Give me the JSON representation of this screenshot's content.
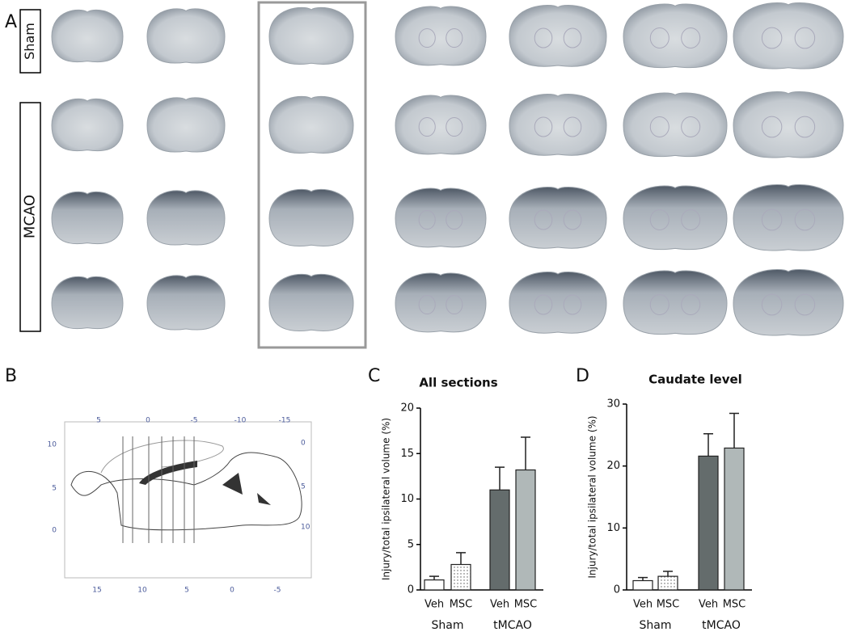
{
  "panels": {
    "A": {
      "label": "A",
      "rows": [
        "Sham",
        "MCAO"
      ]
    },
    "B": {
      "label": "B",
      "top_ticks": [
        "5",
        "0",
        "-5",
        "-10",
        "-15"
      ],
      "right_ticks": [
        "0",
        "5",
        "10"
      ],
      "left_ticks": [
        "10",
        "5",
        "0"
      ],
      "bottom_ticks": [
        "15",
        "10",
        "5",
        "0",
        "-5"
      ]
    },
    "C": {
      "label": "C"
    },
    "D": {
      "label": "D"
    }
  },
  "chart_data": [
    {
      "type": "bar",
      "title": "All sections",
      "ylabel": "Injury/total ipsilateral volume (%)",
      "categories": [
        "Veh",
        "MSC",
        "Veh",
        "MSC"
      ],
      "groups": [
        "Sham",
        "tMCAO"
      ],
      "values": [
        1.1,
        2.8,
        11.0,
        13.2
      ],
      "errors": [
        0.4,
        1.3,
        2.5,
        3.6
      ],
      "colors": [
        "#ffffff",
        "#ffffff",
        "#646c6c",
        "#b0b8b8"
      ],
      "patterns": [
        "none",
        "dots",
        "none",
        "none"
      ],
      "ylim": [
        0,
        20
      ],
      "yticks": [
        0,
        5,
        10,
        15,
        20
      ]
    },
    {
      "type": "bar",
      "title": "Caudate level",
      "ylabel": "Injury/total ipsilateral volume (%)",
      "categories": [
        "Veh",
        "MSC",
        "Veh",
        "MSC"
      ],
      "groups": [
        "Sham",
        "tMCAO"
      ],
      "values": [
        1.5,
        2.2,
        21.6,
        22.9
      ],
      "errors": [
        0.5,
        0.8,
        3.6,
        5.6
      ],
      "colors": [
        "#ffffff",
        "#ffffff",
        "#646c6c",
        "#b0b8b8"
      ],
      "patterns": [
        "none",
        "dots",
        "none",
        "none"
      ],
      "ylim": [
        0,
        30
      ],
      "yticks": [
        0,
        10,
        20,
        30
      ]
    }
  ]
}
